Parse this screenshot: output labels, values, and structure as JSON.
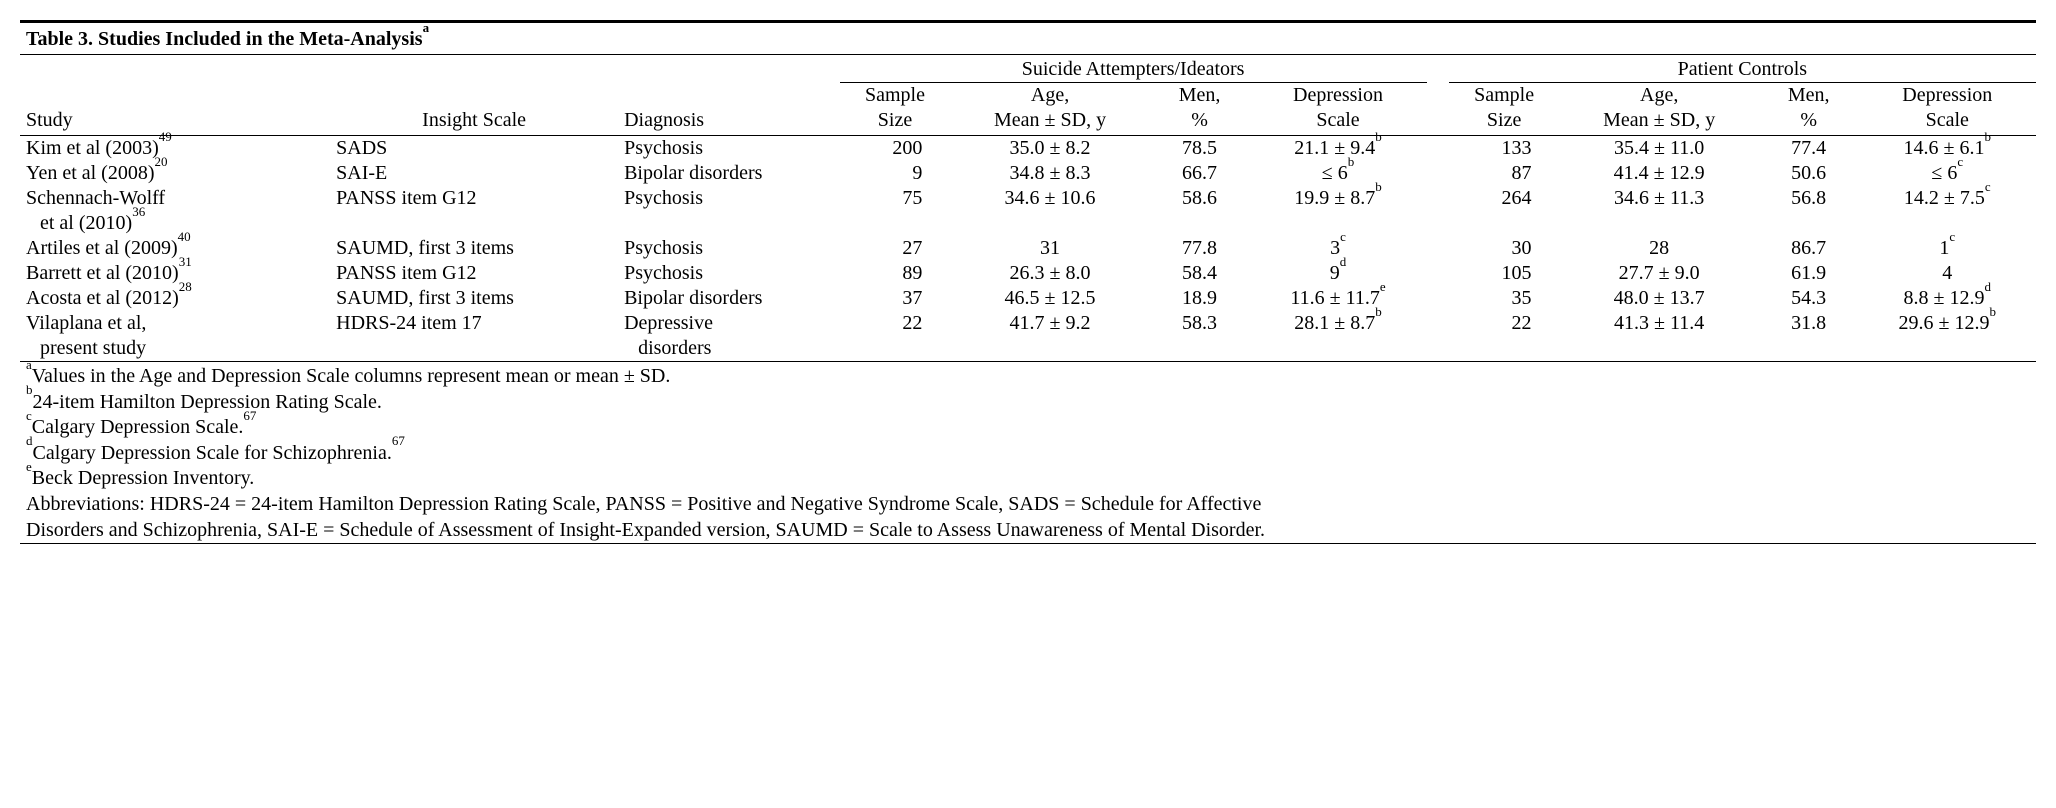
{
  "title": {
    "text": "Table 3. Studies Included in the Meta-Analysis",
    "sup": "a"
  },
  "groups": {
    "sa": "Suicide Attempters/Ideators",
    "pc": "Patient Controls"
  },
  "headers": {
    "study": "Study",
    "insight": "Insight Scale",
    "diagnosis": "Diagnosis",
    "sample": "Sample\nSize",
    "age": "Age,\nMean ± SD, y",
    "men": "Men,\n%",
    "dep": "Depression\nScale"
  },
  "rows": [
    {
      "study": "Kim et al (2003)",
      "ref": "49",
      "insight": "SADS",
      "diagnosis": "Psychosis",
      "sa": {
        "n": "200",
        "age": "35.0 ± 8.2",
        "men": "78.5",
        "dep": "21.1 ± 9.4",
        "dep_sup": "b"
      },
      "pc": {
        "n": "133",
        "age": "35.4 ± 11.0",
        "men": "77.4",
        "dep": "14.6 ± 6.1",
        "dep_sup": "b"
      }
    },
    {
      "study": "Yen et al (2008)",
      "ref": "20",
      "insight": "SAI-E",
      "diagnosis": "Bipolar disorders",
      "sa": {
        "n": "9",
        "age": "34.8 ± 8.3",
        "men": "66.7",
        "dep": "≤ 6",
        "dep_sup": "b"
      },
      "pc": {
        "n": "87",
        "age": "41.4 ± 12.9",
        "men": "50.6",
        "dep": "≤ 6",
        "dep_sup": "c"
      }
    },
    {
      "study": "Schennach-Wolff",
      "study2": "et al (2010)",
      "ref": "36",
      "insight": "PANSS item G12",
      "diagnosis": "Psychosis",
      "sa": {
        "n": "75",
        "age": "34.6 ± 10.6",
        "men": "58.6",
        "dep": "19.9 ± 8.7",
        "dep_sup": "b"
      },
      "pc": {
        "n": "264",
        "age": "34.6 ± 11.3",
        "men": "56.8",
        "dep": "14.2 ± 7.5",
        "dep_sup": "c"
      }
    },
    {
      "study": "Artiles et al (2009)",
      "ref": "40",
      "insight": "SAUMD, first 3 items",
      "diagnosis": "Psychosis",
      "sa": {
        "n": "27",
        "age": "31",
        "men": "77.8",
        "dep": "3",
        "dep_sup": "c"
      },
      "pc": {
        "n": "30",
        "age": "28",
        "men": "86.7",
        "dep": "1",
        "dep_sup": "c"
      }
    },
    {
      "study": "Barrett et al (2010)",
      "ref": "31",
      "insight": "PANSS item G12",
      "diagnosis": "Psychosis",
      "sa": {
        "n": "89",
        "age": "26.3 ± 8.0",
        "men": "58.4",
        "dep": "9",
        "dep_sup": "d"
      },
      "pc": {
        "n": "105",
        "age": "27.7 ± 9.0",
        "men": "61.9",
        "dep": "4",
        "dep_sup": ""
      }
    },
    {
      "study": "Acosta et al (2012)",
      "ref": "28",
      "insight": "SAUMD, first 3 items",
      "diagnosis": "Bipolar disorders",
      "sa": {
        "n": "37",
        "age": "46.5 ± 12.5",
        "men": "18.9",
        "dep": "11.6 ± 11.7",
        "dep_sup": "e"
      },
      "pc": {
        "n": "35",
        "age": "48.0 ± 13.7",
        "men": "54.3",
        "dep": "8.8 ± 12.9",
        "dep_sup": "d"
      }
    },
    {
      "study": "Vilaplana et al,",
      "study2": "present study",
      "ref": "",
      "insight": "HDRS-24 item 17",
      "diagnosis": "Depressive",
      "diagnosis2": "disorders",
      "sa": {
        "n": "22",
        "age": "41.7 ± 9.2",
        "men": "58.3",
        "dep": "28.1 ± 8.7",
        "dep_sup": "b"
      },
      "pc": {
        "n": "22",
        "age": "41.3 ± 11.4",
        "men": "31.8",
        "dep": "29.6 ± 12.9",
        "dep_sup": "b"
      }
    }
  ],
  "footnotes": {
    "a": {
      "sup": "a",
      "text": "Values in the Age and Depression Scale columns represent mean or mean ± SD."
    },
    "b": {
      "sup": "b",
      "text": "24-item Hamilton Depression Rating Scale."
    },
    "c": {
      "sup": "c",
      "text": "Calgary Depression Scale.",
      "ref": "67"
    },
    "d": {
      "sup": "d",
      "text": "Calgary Depression Scale for Schizophrenia.",
      "ref": "67"
    },
    "e": {
      "sup": "e",
      "text": "Beck Depression Inventory."
    },
    "abbr1": "Abbreviations: HDRS-24 = 24-item Hamilton Depression Rating Scale, PANSS = Positive and Negative Syndrome Scale, SADS = Schedule for Affective",
    "abbr2": "Disorders and Schizophrenia, SAI-E = Schedule of Assessment of Insight-Expanded version, SAUMD = Scale to Assess Unawareness of Mental Disorder."
  }
}
